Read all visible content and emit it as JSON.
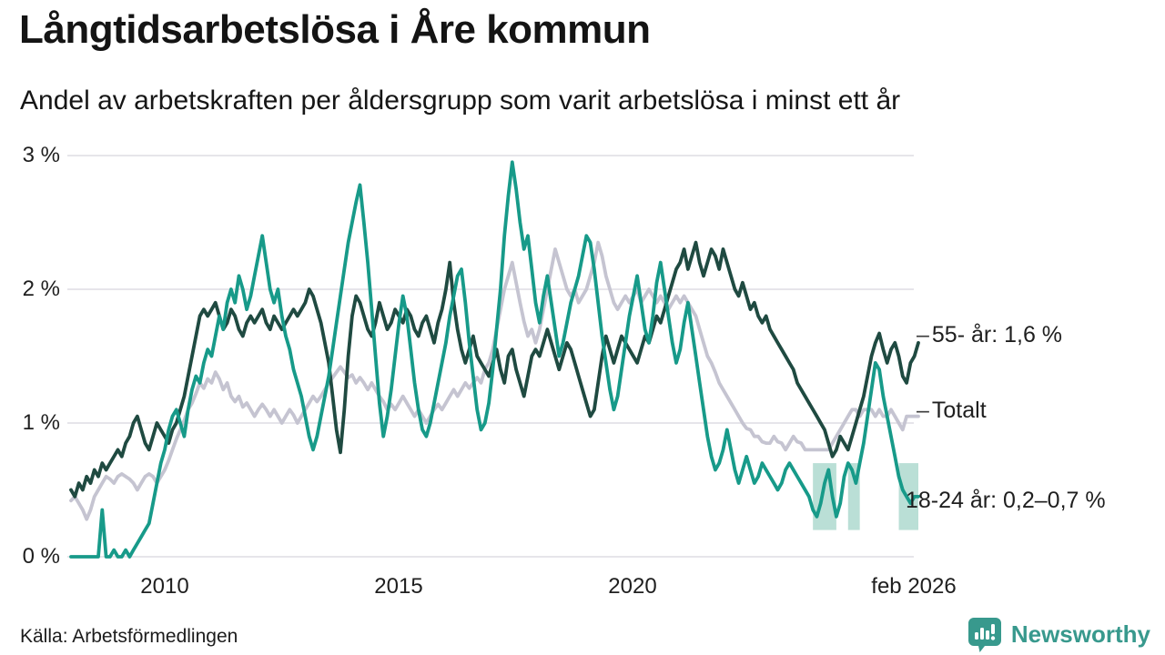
{
  "header": {
    "title": "Långtidsarbetslösa i Åre kommun",
    "subtitle": "Andel av arbetskraften per åldersgrupp som varit arbetslösa i minst ett år"
  },
  "footer": {
    "source": "Källa: Arbetsförmedlingen",
    "brand": "Newsworthy"
  },
  "colors": {
    "age_55": "#1f4a41",
    "total": "#c5c4d1",
    "age_18_24": "#179a89",
    "band": "#b2dbd2",
    "grid": "#e6e5ea",
    "brand_teal": "#38998d"
  },
  "chart_data": {
    "type": "line",
    "title": "Långtidsarbetslösa i Åre kommun",
    "subtitle": "Andel av arbetskraften per åldersgrupp som varit arbetslösa i minst ett år",
    "unit": "% av arbetskraften",
    "x_start": "2008-01",
    "x_end": "2026-02",
    "months_per_point": 1,
    "ylim": [
      0,
      3
    ],
    "grid": true,
    "y_ticks": [
      {
        "label": "3 %",
        "value": 3
      },
      {
        "label": "2 %",
        "value": 2
      },
      {
        "label": "1 %",
        "value": 1
      },
      {
        "label": "0 %",
        "value": 0
      }
    ],
    "x_ticks": [
      {
        "label": "2010",
        "years_from_start": 2.0
      },
      {
        "label": "2015",
        "years_from_start": 7.0
      },
      {
        "label": "2020",
        "years_from_start": 12.0
      },
      {
        "label": "feb 2026",
        "years_from_start": 18.083
      }
    ],
    "series": [
      {
        "name": "Totalt",
        "color": "#c5c4d1",
        "values": [
          0.42,
          0.45,
          0.4,
          0.35,
          0.28,
          0.35,
          0.45,
          0.5,
          0.55,
          0.6,
          0.58,
          0.55,
          0.6,
          0.62,
          0.6,
          0.58,
          0.55,
          0.5,
          0.55,
          0.6,
          0.62,
          0.6,
          0.55,
          0.6,
          0.65,
          0.72,
          0.8,
          0.88,
          0.95,
          1.02,
          1.1,
          1.15,
          1.22,
          1.3,
          1.26,
          1.33,
          1.3,
          1.38,
          1.33,
          1.25,
          1.3,
          1.2,
          1.16,
          1.2,
          1.12,
          1.15,
          1.1,
          1.05,
          1.1,
          1.14,
          1.1,
          1.05,
          1.1,
          1.05,
          1.0,
          1.05,
          1.1,
          1.06,
          1.0,
          1.05,
          1.1,
          1.15,
          1.2,
          1.16,
          1.2,
          1.25,
          1.3,
          1.34,
          1.38,
          1.42,
          1.38,
          1.34,
          1.36,
          1.3,
          1.34,
          1.3,
          1.25,
          1.3,
          1.25,
          1.2,
          1.16,
          1.1,
          1.14,
          1.1,
          1.15,
          1.2,
          1.15,
          1.1,
          1.05,
          1.1,
          1.05,
          1.0,
          1.05,
          1.1,
          1.14,
          1.1,
          1.15,
          1.2,
          1.25,
          1.2,
          1.25,
          1.3,
          1.26,
          1.3,
          1.34,
          1.3,
          1.4,
          1.45,
          1.55,
          1.7,
          1.85,
          2.0,
          2.1,
          2.2,
          2.05,
          1.9,
          1.76,
          1.65,
          1.7,
          1.6,
          1.7,
          1.85,
          2.0,
          2.15,
          2.3,
          2.2,
          2.1,
          2.0,
          1.95,
          2.0,
          1.9,
          1.95,
          2.0,
          2.1,
          2.2,
          2.35,
          2.25,
          2.1,
          2.0,
          1.9,
          1.85,
          1.9,
          1.95,
          1.9,
          1.95,
          2.0,
          1.9,
          1.95,
          2.0,
          1.95,
          1.9,
          1.95,
          1.9,
          1.85,
          1.9,
          1.95,
          1.9,
          1.95,
          1.9,
          1.85,
          1.8,
          1.7,
          1.6,
          1.5,
          1.45,
          1.38,
          1.3,
          1.25,
          1.2,
          1.15,
          1.1,
          1.05,
          1.0,
          0.96,
          0.95,
          0.9,
          0.9,
          0.86,
          0.85,
          0.85,
          0.9,
          0.86,
          0.85,
          0.8,
          0.85,
          0.9,
          0.86,
          0.85,
          0.8,
          0.8,
          0.8,
          0.8,
          0.8,
          0.8,
          0.8,
          0.85,
          0.9,
          0.95,
          1.0,
          1.05,
          1.1,
          1.1,
          1.05,
          1.1,
          1.1,
          1.1,
          1.05,
          1.1,
          1.05,
          1.05,
          1.1,
          1.05,
          1.0,
          0.95,
          1.05,
          1.05,
          1.05,
          1.05
        ]
      },
      {
        "name": "55- år",
        "color": "#1f4a41",
        "values": [
          0.5,
          0.45,
          0.55,
          0.5,
          0.6,
          0.55,
          0.65,
          0.6,
          0.7,
          0.65,
          0.7,
          0.75,
          0.8,
          0.75,
          0.85,
          0.9,
          1.0,
          1.05,
          0.95,
          0.85,
          0.8,
          0.9,
          1.0,
          0.95,
          0.9,
          0.85,
          0.95,
          1.0,
          1.1,
          1.2,
          1.35,
          1.5,
          1.65,
          1.8,
          1.85,
          1.8,
          1.85,
          1.9,
          1.8,
          1.7,
          1.75,
          1.85,
          1.8,
          1.7,
          1.65,
          1.75,
          1.8,
          1.75,
          1.8,
          1.85,
          1.75,
          1.7,
          1.8,
          1.75,
          1.7,
          1.75,
          1.8,
          1.85,
          1.8,
          1.85,
          1.9,
          2.0,
          1.95,
          1.85,
          1.75,
          1.6,
          1.45,
          1.2,
          0.95,
          0.78,
          1.1,
          1.5,
          1.8,
          1.95,
          1.9,
          1.8,
          1.7,
          1.65,
          1.75,
          1.9,
          1.8,
          1.7,
          1.75,
          1.85,
          1.8,
          1.75,
          1.85,
          1.8,
          1.7,
          1.65,
          1.75,
          1.8,
          1.7,
          1.6,
          1.75,
          1.85,
          2.0,
          2.2,
          1.9,
          1.7,
          1.55,
          1.45,
          1.55,
          1.65,
          1.5,
          1.45,
          1.4,
          1.35,
          1.45,
          1.55,
          1.4,
          1.3,
          1.5,
          1.55,
          1.4,
          1.3,
          1.2,
          1.35,
          1.5,
          1.55,
          1.5,
          1.6,
          1.7,
          1.6,
          1.5,
          1.4,
          1.5,
          1.6,
          1.55,
          1.45,
          1.35,
          1.25,
          1.15,
          1.05,
          1.1,
          1.3,
          1.5,
          1.65,
          1.55,
          1.45,
          1.55,
          1.65,
          1.6,
          1.55,
          1.5,
          1.45,
          1.55,
          1.65,
          1.6,
          1.7,
          1.8,
          1.75,
          1.85,
          1.95,
          2.05,
          2.15,
          2.2,
          2.3,
          2.15,
          2.25,
          2.35,
          2.2,
          2.1,
          2.2,
          2.3,
          2.25,
          2.15,
          2.3,
          2.2,
          2.1,
          2.0,
          1.95,
          2.05,
          1.95,
          1.85,
          1.9,
          1.8,
          1.75,
          1.8,
          1.7,
          1.65,
          1.6,
          1.55,
          1.5,
          1.45,
          1.4,
          1.3,
          1.25,
          1.2,
          1.15,
          1.1,
          1.05,
          1.0,
          0.95,
          0.85,
          0.75,
          0.8,
          0.9,
          0.85,
          0.8,
          0.9,
          1.0,
          1.1,
          1.2,
          1.35,
          1.5,
          1.6,
          1.67,
          1.55,
          1.45,
          1.55,
          1.6,
          1.5,
          1.35,
          1.3,
          1.45,
          1.5,
          1.6
        ]
      },
      {
        "name": "18-24 år",
        "color": "#179a89",
        "values": [
          0,
          0,
          0,
          0,
          0,
          0,
          0,
          0,
          0.35,
          0,
          0,
          0.05,
          0,
          0,
          0.05,
          0,
          0.05,
          0.1,
          0.15,
          0.2,
          0.25,
          0.4,
          0.55,
          0.7,
          0.8,
          0.95,
          1.05,
          1.1,
          1.0,
          0.9,
          1.1,
          1.25,
          1.35,
          1.3,
          1.45,
          1.55,
          1.5,
          1.65,
          1.8,
          1.7,
          1.9,
          2.0,
          1.9,
          2.1,
          2.0,
          1.85,
          1.95,
          2.1,
          2.25,
          2.4,
          2.2,
          2.0,
          1.9,
          2.0,
          1.8,
          1.65,
          1.55,
          1.4,
          1.3,
          1.2,
          1.05,
          0.9,
          0.8,
          0.9,
          1.05,
          1.2,
          1.35,
          1.55,
          1.75,
          1.95,
          2.15,
          2.35,
          2.5,
          2.65,
          2.78,
          2.5,
          2.2,
          1.85,
          1.5,
          1.15,
          0.9,
          1.05,
          1.25,
          1.5,
          1.75,
          1.95,
          1.8,
          1.55,
          1.3,
          1.1,
          0.95,
          0.9,
          1.0,
          1.15,
          1.3,
          1.45,
          1.6,
          1.8,
          1.95,
          2.1,
          2.15,
          1.9,
          1.6,
          1.35,
          1.1,
          0.95,
          1.0,
          1.15,
          1.4,
          1.7,
          2.0,
          2.4,
          2.7,
          2.95,
          2.75,
          2.5,
          2.3,
          2.4,
          2.15,
          1.9,
          1.75,
          1.95,
          2.1,
          1.9,
          1.7,
          1.5,
          1.6,
          1.75,
          1.9,
          2.0,
          2.1,
          2.25,
          2.4,
          2.35,
          2.15,
          1.9,
          1.65,
          1.45,
          1.25,
          1.1,
          1.2,
          1.4,
          1.6,
          1.8,
          1.95,
          2.1,
          1.9,
          1.7,
          1.6,
          1.8,
          2.05,
          2.2,
          2.0,
          1.8,
          1.6,
          1.45,
          1.55,
          1.75,
          1.9,
          1.7,
          1.5,
          1.3,
          1.1,
          0.9,
          0.75,
          0.65,
          0.7,
          0.8,
          0.95,
          0.8,
          0.65,
          0.55,
          0.65,
          0.75,
          0.65,
          0.55,
          0.6,
          0.7,
          0.65,
          0.6,
          0.55,
          0.5,
          0.55,
          0.65,
          0.7,
          0.65,
          0.6,
          0.55,
          0.5,
          0.45,
          0.35,
          0.3,
          0.4,
          0.55,
          0.65,
          0.45,
          0.3,
          0.4,
          0.6,
          0.7,
          0.65,
          0.55,
          0.7,
          0.85,
          1.05,
          1.25,
          1.45,
          1.4,
          1.2,
          1.05,
          0.9,
          0.75,
          0.6,
          0.5,
          0.45,
          0.4,
          0.45,
          0.45
        ]
      }
    ],
    "uncertainty_band": {
      "series": "18-24 år",
      "label_range": "0,2–0,7 %",
      "color": "#b2dbd2",
      "y_range": [
        0.2,
        0.7
      ],
      "segments": [
        [
          190,
          196
        ],
        [
          199,
          202
        ],
        [
          212,
          217
        ]
      ]
    },
    "annotations": [
      {
        "dash": "–",
        "label": "55- år: 1,6 %"
      },
      {
        "dash": "–",
        "label": "Totalt"
      },
      {
        "dash": "",
        "label": "18-24 år: 0,2–0,7 %"
      }
    ],
    "legend_position": "right-of-line-ends"
  }
}
